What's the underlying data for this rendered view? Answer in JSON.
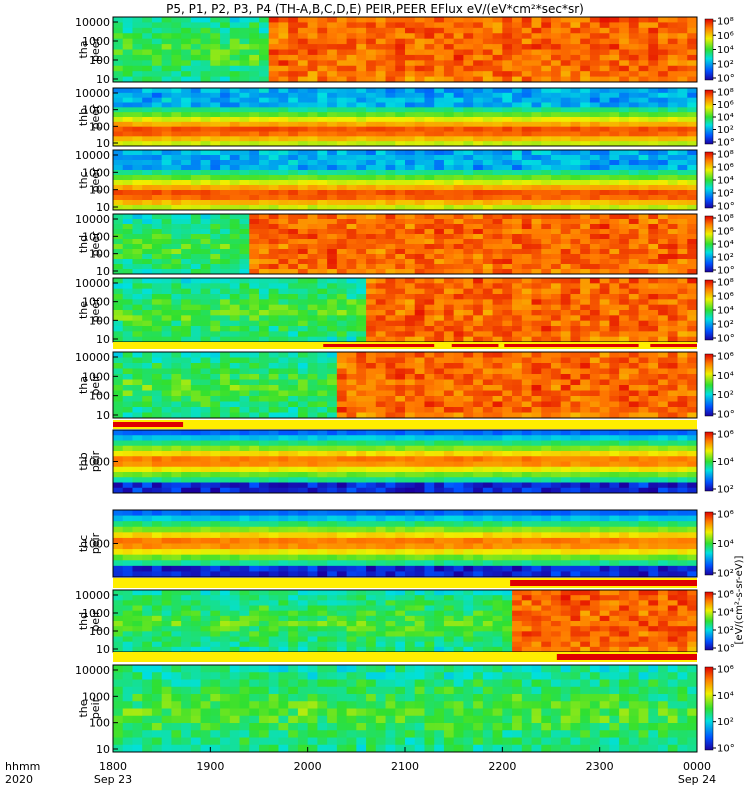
{
  "title": "P5, P1, P2, P3, P4 (TH-A,B,C,D,E) PEIR,PEER EFlux eV/(eV*cm²*sec*sr)",
  "chart_data": {
    "type": "heatmap",
    "x": {
      "ticks": [
        "1800",
        "1900",
        "2000",
        "2100",
        "2200",
        "2300",
        "0000"
      ],
      "date_labels": {
        "start": "Sep 23",
        "end": "Sep 24"
      },
      "range": [
        "2020-09-23 18:00",
        "2020-09-24 00:00"
      ],
      "label_top": "hhmm",
      "label_bottom": "2020"
    },
    "colorbar_label": "[eV/(cm²-s-sr-eV)]",
    "panels": [
      {
        "id": "tha_peer",
        "ylabel": [
          "tha",
          "peer"
        ],
        "yticks": [
          "10",
          "100",
          "1000",
          "10000"
        ],
        "cb_ticks": [
          "10°",
          "10²",
          "10⁴",
          "10⁶",
          "10⁸"
        ],
        "bar": "none",
        "status": "activity rises after ~1950"
      },
      {
        "id": "thb_peer",
        "ylabel": [
          "thb",
          "peer"
        ],
        "yticks": [
          "10",
          "100",
          "1000",
          "10000"
        ],
        "cb_ticks": [
          "10°",
          "10²",
          "10⁴",
          "10⁶",
          "10⁸"
        ],
        "bar": "none",
        "status": "steady"
      },
      {
        "id": "thc_peer",
        "ylabel": [
          "thc",
          "peer"
        ],
        "yticks": [
          "10",
          "100",
          "1000",
          "10000"
        ],
        "cb_ticks": [
          "10°",
          "10²",
          "10⁴",
          "10⁶",
          "10⁸"
        ],
        "bar": "none",
        "status": "steady"
      },
      {
        "id": "thd_peer",
        "ylabel": [
          "thd",
          "peer"
        ],
        "yticks": [
          "10",
          "100",
          "1000",
          "10000"
        ],
        "cb_ticks": [
          "10°",
          "10²",
          "10⁴",
          "10⁶",
          "10⁸"
        ],
        "bar": "none",
        "status": "activity rises after ~1935"
      },
      {
        "id": "the_peer",
        "ylabel": [
          "the",
          "peer"
        ],
        "yticks": [
          "10",
          "100",
          "1000",
          "10000"
        ],
        "cb_ticks": [
          "10°",
          "10²",
          "10⁴",
          "10⁶",
          "10⁸"
        ],
        "bar": "red/yellow",
        "status": "activity rises after ~2075"
      },
      {
        "id": "tha_peir",
        "ylabel": [
          "tha",
          "peir"
        ],
        "yticks": [
          "10",
          "100",
          "1000",
          "10000"
        ],
        "cb_ticks": [
          "10°",
          "10²",
          "10⁴",
          "10⁶"
        ],
        "bar": "red/yellow",
        "status": "activity rises after ~2020"
      },
      {
        "id": "thb_peir",
        "ylabel": [
          "thb",
          "peir"
        ],
        "yticks": [
          "1000"
        ],
        "cb_ticks": [
          "10²",
          "10⁴",
          "10⁶"
        ],
        "bar": "none",
        "status": "steady"
      },
      {
        "id": "thc_peir",
        "ylabel": [
          "thc",
          "peir"
        ],
        "yticks": [
          "1000"
        ],
        "cb_ticks": [
          "10²",
          "10⁴",
          "10⁶"
        ],
        "bar": "red/yellow",
        "status": "steady"
      },
      {
        "id": "thd_peir",
        "ylabel": [
          "thd",
          "peir"
        ],
        "yticks": [
          "10",
          "100",
          "1000",
          "10000"
        ],
        "cb_ticks": [
          "10°",
          "10²",
          "10⁴",
          "10⁶"
        ],
        "bar": "red/yellow",
        "status": "activity rises after ~2220"
      },
      {
        "id": "the_peir",
        "ylabel": [
          "the",
          "peir"
        ],
        "yticks": [
          "10",
          "100",
          "1000",
          "10000"
        ],
        "cb_ticks": [
          "10°",
          "10²",
          "10⁴",
          "10⁶"
        ],
        "bar": "none",
        "status": "steady"
      }
    ]
  }
}
